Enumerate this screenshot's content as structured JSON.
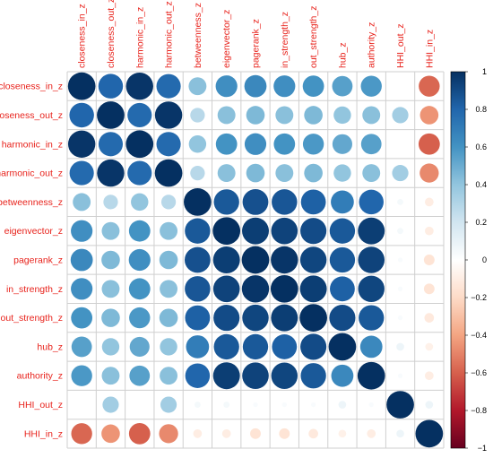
{
  "chart_data": {
    "type": "heatmap",
    "title": "",
    "variables": [
      "closeness_in_z",
      "closeness_out_z",
      "harmonic_in_z",
      "harmonic_out_z",
      "betweenness_z",
      "eigenvector_z",
      "pagerank_z",
      "in_strength_z",
      "out_strength_z",
      "hub_z",
      "authority_z",
      "HHI_out_z",
      "HHI_in_z"
    ],
    "matrix": [
      [
        1.0,
        0.8,
        0.98,
        0.78,
        0.42,
        0.62,
        0.65,
        0.62,
        0.6,
        0.55,
        0.58,
        0.0,
        -0.58
      ],
      [
        0.8,
        1.0,
        0.78,
        0.98,
        0.28,
        0.42,
        0.45,
        0.42,
        0.45,
        0.4,
        0.42,
        0.35,
        -0.45
      ],
      [
        0.98,
        0.78,
        1.0,
        0.78,
        0.4,
        0.6,
        0.62,
        0.6,
        0.58,
        0.52,
        0.55,
        0.0,
        -0.6
      ],
      [
        0.78,
        0.98,
        0.78,
        1.0,
        0.28,
        0.42,
        0.45,
        0.42,
        0.45,
        0.4,
        0.42,
        0.35,
        -0.48
      ],
      [
        0.42,
        0.28,
        0.4,
        0.28,
        1.0,
        0.85,
        0.88,
        0.86,
        0.82,
        0.7,
        0.8,
        0.05,
        -0.1
      ],
      [
        0.62,
        0.42,
        0.6,
        0.42,
        0.85,
        1.0,
        0.95,
        0.93,
        0.9,
        0.85,
        0.95,
        0.05,
        -0.1
      ],
      [
        0.65,
        0.45,
        0.62,
        0.45,
        0.88,
        0.95,
        1.0,
        0.98,
        0.92,
        0.85,
        0.93,
        0.03,
        -0.15
      ],
      [
        0.62,
        0.42,
        0.6,
        0.42,
        0.86,
        0.93,
        0.98,
        1.0,
        0.95,
        0.82,
        0.92,
        0.03,
        -0.15
      ],
      [
        0.6,
        0.45,
        0.58,
        0.45,
        0.82,
        0.9,
        0.92,
        0.95,
        1.0,
        0.9,
        0.85,
        0.03,
        -0.12
      ],
      [
        0.55,
        0.4,
        0.52,
        0.4,
        0.7,
        0.85,
        0.85,
        0.82,
        0.9,
        1.0,
        0.65,
        0.08,
        -0.08
      ],
      [
        0.58,
        0.42,
        0.55,
        0.42,
        0.8,
        0.95,
        0.93,
        0.92,
        0.85,
        0.65,
        1.0,
        0.03,
        -0.1
      ],
      [
        0.0,
        0.35,
        0.0,
        0.35,
        0.05,
        0.05,
        0.03,
        0.03,
        0.03,
        0.08,
        0.03,
        1.0,
        0.08
      ],
      [
        -0.58,
        -0.45,
        -0.6,
        -0.48,
        -0.1,
        -0.1,
        -0.15,
        -0.15,
        -0.12,
        -0.08,
        -0.1,
        0.08,
        1.0
      ]
    ],
    "colorbar_range": [
      -1,
      1
    ],
    "colorbar_ticks": [
      "1",
      "0.8",
      "0.6",
      "0.4",
      "0.2",
      "0",
      "−0.2",
      "−0.4",
      "−0.6",
      "−0.8",
      "−1"
    ],
    "colorbar_tick_values": [
      1,
      0.8,
      0.6,
      0.4,
      0.2,
      0,
      -0.2,
      -0.4,
      -0.6,
      -0.8,
      -1
    ],
    "colors": {
      "gradient": [
        "#67001f",
        "#b2182b",
        "#d6604d",
        "#f4a582",
        "#fddbc7",
        "#ffffff",
        "#d1e5f0",
        "#92c5de",
        "#4393c3",
        "#2166ac",
        "#053061"
      ],
      "label": "#e8231c",
      "grid": "#cfcfcf"
    },
    "legend_placement": "right",
    "grid": true
  }
}
